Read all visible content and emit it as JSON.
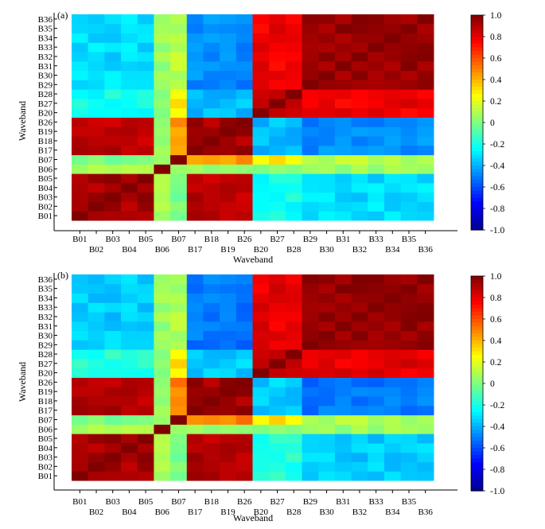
{
  "colorbar": {
    "ticks": [
      "1.0",
      "0.8",
      "0.6",
      "0.4",
      "0.2",
      "0",
      "-0.2",
      "-0.4",
      "-0.6",
      "-0.8",
      "-1.0"
    ],
    "range": [
      -1.0,
      1.0
    ],
    "colors": [
      "#00008f",
      "#0000ff",
      "#0080ff",
      "#00ffff",
      "#80ff80",
      "#ffff00",
      "#ff8000",
      "#ff0000",
      "#800000"
    ]
  },
  "chart_data": [
    {
      "type": "heatmap",
      "panel_label": "(a)",
      "xlabel": "Waveband",
      "ylabel": "Waveband",
      "bands": [
        "B01",
        "B02",
        "B03",
        "B04",
        "B05",
        "B06",
        "B07",
        "B17",
        "B18",
        "B19",
        "B26",
        "B20",
        "B27",
        "B28",
        "B29",
        "B30",
        "B31",
        "B32",
        "B33",
        "B34",
        "B35",
        "B36"
      ],
      "clim": [
        -1.0,
        1.0
      ],
      "groups": {
        "A": [
          "B01",
          "B02",
          "B03",
          "B04",
          "B05"
        ],
        "N": [
          "B06"
        ],
        "B": [
          "B07"
        ],
        "C": [
          "B17",
          "B18",
          "B19",
          "B26"
        ],
        "D": [
          "B20",
          "B27",
          "B28"
        ],
        "E": [
          "B29",
          "B30",
          "B31",
          "B32",
          "B33",
          "B34",
          "B35",
          "B36"
        ]
      },
      "group_correlation": {
        "A_A": 0.93,
        "A_B": 0.0,
        "A_C": 0.88,
        "A_D": -0.22,
        "A_E": -0.32,
        "B_B": 1.0,
        "B_C": 0.45,
        "B_D": 0.28,
        "B_E": 0.1,
        "C_C": 0.92,
        "C_D": -0.38,
        "C_E": -0.48,
        "D_D": 0.9,
        "D_E": 0.78,
        "E_E": 0.95,
        "N_any": 0.05
      }
    },
    {
      "type": "heatmap",
      "panel_label": "(b)",
      "xlabel": "Waveband",
      "ylabel": "Waveband",
      "bands": [
        "B01",
        "B02",
        "B03",
        "B04",
        "B05",
        "B06",
        "B07",
        "B17",
        "B18",
        "B19",
        "B26",
        "B20",
        "B27",
        "B28",
        "B29",
        "B30",
        "B31",
        "B32",
        "B33",
        "B34",
        "B35",
        "B36"
      ],
      "clim": [
        -1.0,
        1.0
      ],
      "groups": {
        "A": [
          "B01",
          "B02",
          "B03",
          "B04",
          "B05"
        ],
        "N": [
          "B06"
        ],
        "B": [
          "B07"
        ],
        "C": [
          "B17",
          "B18",
          "B19",
          "B26"
        ],
        "D": [
          "B20",
          "B27",
          "B28"
        ],
        "E": [
          "B29",
          "B30",
          "B31",
          "B32",
          "B33",
          "B34",
          "B35",
          "B36"
        ]
      },
      "group_correlation": {
        "A_A": 0.93,
        "A_B": 0.0,
        "A_C": 0.9,
        "A_D": -0.18,
        "A_E": -0.35,
        "B_B": 1.0,
        "B_C": 0.5,
        "B_D": 0.3,
        "B_E": 0.08,
        "C_C": 0.93,
        "C_D": -0.35,
        "C_E": -0.52,
        "D_D": 0.9,
        "D_E": 0.8,
        "E_E": 0.96,
        "N_any": 0.05
      }
    }
  ]
}
